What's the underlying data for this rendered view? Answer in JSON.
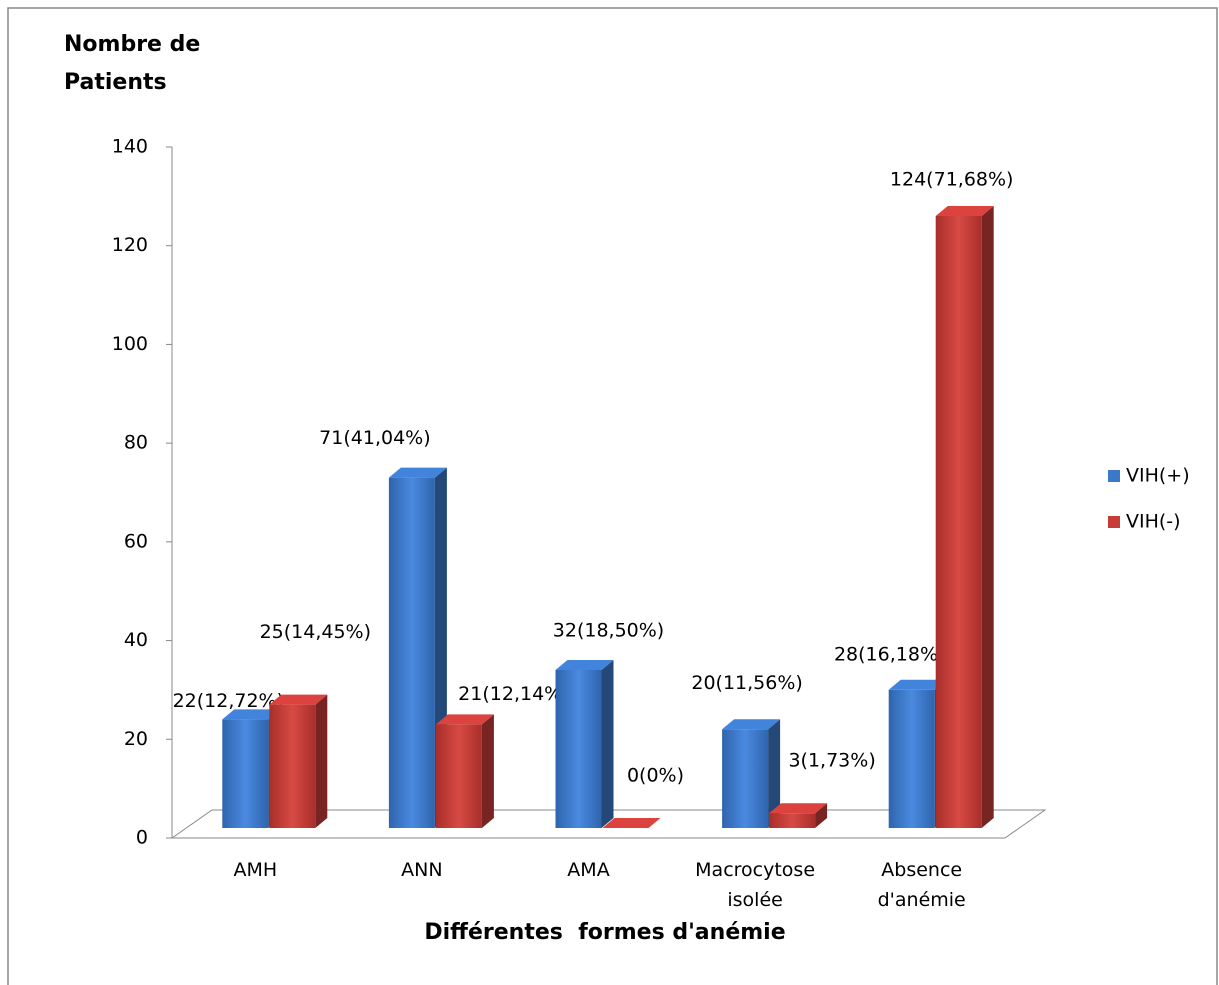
{
  "chart_data": {
    "type": "bar3d",
    "ylabel": "Nombre de Patients",
    "xlabel": "Différentes  formes d'anémie",
    "categories": [
      "AMH",
      "ANN",
      "AMA",
      "Macrocytose isolée",
      "Absence d'anémie"
    ],
    "series": [
      {
        "name": "VIH(+)",
        "color": "#3c78c8",
        "values": [
          22,
          71,
          32,
          20,
          28
        ],
        "value_labels": [
          "22(12,72%)",
          "71(41,04%)",
          "32(18,50%)",
          "20(11,56%)",
          "28(16,18%)"
        ]
      },
      {
        "name": "VIH(-)",
        "color": "#c83c38",
        "values": [
          25,
          21,
          0,
          3,
          124
        ],
        "value_labels": [
          "25(14,45%)",
          "21(12,14%)",
          "0(0%)",
          "3(1,73%)",
          "124(71,68%)"
        ]
      }
    ],
    "ylim": [
      0,
      140
    ],
    "yticks": [
      0,
      20,
      40,
      60,
      80,
      100,
      120,
      140
    ],
    "legend": "right"
  }
}
